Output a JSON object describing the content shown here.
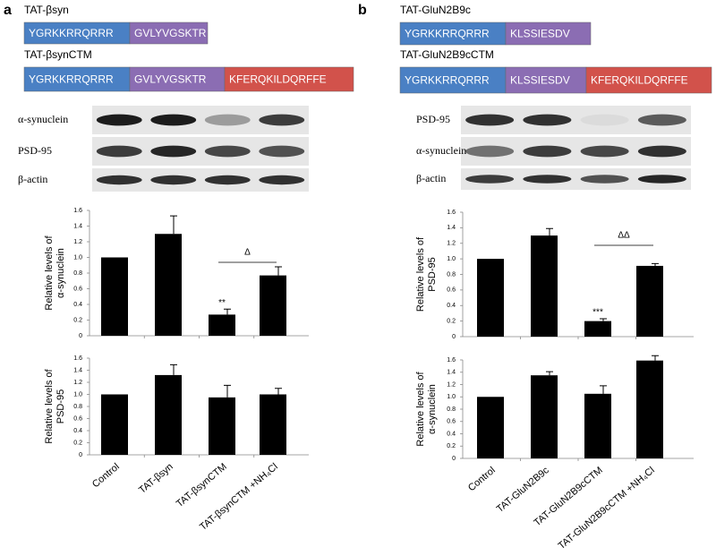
{
  "panels": [
    {
      "label": "a",
      "constructs": [
        {
          "name": "TAT-βsyn",
          "segments": [
            "YGRKKRRQRRR",
            "GVLYVGSKTR"
          ]
        },
        {
          "name": "TAT-βsynCTM",
          "segments": [
            "YGRKKRRQRRR",
            "GVLYVGSKTR",
            "KFERQKILDQRFFE"
          ]
        }
      ],
      "blot_labels": [
        "α-synuclein",
        "PSD-95",
        "β-actin"
      ]
    },
    {
      "label": "b",
      "constructs": [
        {
          "name": "TAT-GluN2B9c",
          "segments": [
            "YGRKKRRQRRR",
            "KLSSIESDV"
          ]
        },
        {
          "name": "TAT-GluN2B9cCTM",
          "segments": [
            "YGRKKRRQRRR",
            "KLSSIESDV",
            "KFERQKILDQRFFE"
          ]
        }
      ],
      "blot_labels": [
        "PSD-95",
        "α-synuclein",
        "β-actin"
      ]
    }
  ],
  "chart_data": [
    {
      "type": "bar",
      "ylabel": [
        "Relative levels of",
        "α-synuclein"
      ],
      "categories": [
        null,
        null,
        null,
        null
      ],
      "values": [
        1.0,
        1.3,
        0.27,
        0.77
      ],
      "errors": [
        null,
        0.23,
        0.07,
        0.11
      ],
      "color": "#000000",
      "ylim": [
        0,
        1.6
      ],
      "yticks": [
        0,
        0.2,
        0.4,
        0.6,
        0.8,
        {
          "value": 1,
          "label": "1.0"
        },
        1.2,
        1.4,
        1.6
      ],
      "annotations": [
        "**",
        "Δ"
      ]
    },
    {
      "type": "bar",
      "ylabel": [
        "Relative levels of",
        "PSD-95"
      ],
      "categories": [
        "Control",
        "TAT-βsyn",
        "TAT-βsynCTM",
        "TAT-βsynCTM +NH₄Cl"
      ],
      "values": [
        1.0,
        1.32,
        0.95,
        1.0
      ],
      "errors": [
        null,
        0.17,
        0.2,
        0.1
      ],
      "color": "#000000",
      "ylim": [
        0,
        1.6
      ],
      "yticks": [
        0,
        0.2,
        0.4,
        0.6,
        0.8,
        {
          "value": 1,
          "label": "1.0"
        },
        1.2,
        1.4,
        1.6
      ],
      "annotations": []
    },
    {
      "type": "bar",
      "ylabel": [
        "Relative levels of",
        "PSD-95"
      ],
      "categories": [
        null,
        null,
        null,
        null
      ],
      "values": [
        1.0,
        1.3,
        0.2,
        0.91
      ],
      "errors": [
        null,
        0.09,
        0.03,
        0.03
      ],
      "color": "#000000",
      "ylim": [
        0,
        1.6
      ],
      "yticks": [
        0,
        0.2,
        0.4,
        0.6,
        0.8,
        {
          "value": 1,
          "label": "1.0"
        },
        1.2,
        1.4,
        1.6
      ],
      "annotations": [
        "***",
        "ΔΔ"
      ]
    },
    {
      "type": "bar",
      "ylabel": [
        "Relative levels of",
        "α-synuclein"
      ],
      "categories": [
        "Control",
        "TAT-GluN2B9c",
        "TAT-GluN2B9cCTM",
        "TAT-GluN2B9cCTM +NH₄Cl"
      ],
      "values": [
        1.0,
        1.35,
        1.05,
        1.59
      ],
      "errors": [
        null,
        0.06,
        0.13,
        0.08
      ],
      "color": "#000000",
      "ylim": [
        0,
        1.6
      ],
      "yticks": [
        0,
        0.2,
        0.4,
        0.6,
        0.8,
        {
          "value": 1,
          "label": "1.0"
        },
        1.2,
        1.4,
        1.6
      ],
      "annotations": []
    }
  ]
}
